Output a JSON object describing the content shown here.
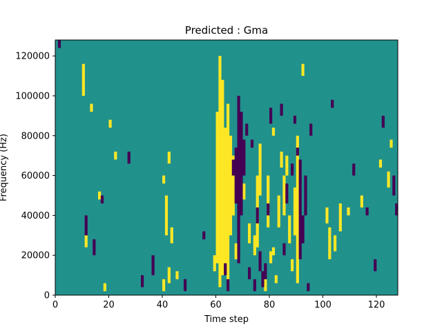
{
  "chart_data": {
    "type": "heatmap",
    "title": "Predicted : Gma",
    "xlabel": "Time step",
    "ylabel": "Frequency (Hz)",
    "xlim": [
      0,
      128
    ],
    "ylim": [
      0,
      128000
    ],
    "x_ticks": [
      0,
      20,
      40,
      60,
      80,
      100,
      120
    ],
    "y_ticks": [
      0,
      20000,
      40000,
      60000,
      80000,
      100000,
      120000
    ],
    "grid": false,
    "legend": "none",
    "grid_size": {
      "cols": 128,
      "rows": 128,
      "row_height_hz": 1000
    },
    "colors": {
      "background": "#21918c",
      "high": "#fde725",
      "low": "#440154"
    },
    "cells": {
      "high": [
        [
          10,
          100,
          116
        ],
        [
          11,
          24,
          30
        ],
        [
          13,
          92,
          96
        ],
        [
          16,
          48,
          52
        ],
        [
          18,
          2,
          6
        ],
        [
          20,
          84,
          88
        ],
        [
          22,
          68,
          72
        ],
        [
          40,
          2,
          8
        ],
        [
          40,
          56,
          60
        ],
        [
          41,
          30,
          50
        ],
        [
          42,
          6,
          14
        ],
        [
          42,
          66,
          72
        ],
        [
          43,
          26,
          34
        ],
        [
          45,
          8,
          12
        ],
        [
          59,
          12,
          20
        ],
        [
          60,
          16,
          92
        ],
        [
          61,
          4,
          120
        ],
        [
          62,
          10,
          108
        ],
        [
          63,
          14,
          84
        ],
        [
          64,
          6,
          96
        ],
        [
          65,
          30,
          80
        ],
        [
          66,
          40,
          70
        ],
        [
          67,
          18,
          26
        ],
        [
          70,
          48,
          56
        ],
        [
          72,
          26,
          36
        ],
        [
          74,
          20,
          30
        ],
        [
          75,
          24,
          60
        ],
        [
          76,
          50,
          76
        ],
        [
          78,
          2,
          8
        ],
        [
          79,
          34,
          60
        ],
        [
          80,
          16,
          22
        ],
        [
          81,
          20,
          24
        ],
        [
          81,
          80,
          84
        ],
        [
          82,
          6,
          10
        ],
        [
          83,
          34,
          50
        ],
        [
          84,
          64,
          72
        ],
        [
          85,
          40,
          60
        ],
        [
          86,
          60,
          70
        ],
        [
          87,
          26,
          40
        ],
        [
          88,
          12,
          18
        ],
        [
          89,
          30,
          54
        ],
        [
          90,
          6,
          80
        ],
        [
          92,
          110,
          116
        ],
        [
          101,
          36,
          44
        ],
        [
          102,
          18,
          34
        ],
        [
          104,
          22,
          30
        ],
        [
          106,
          32,
          46
        ],
        [
          109,
          40,
          44
        ],
        [
          114,
          44,
          50
        ],
        [
          121,
          64,
          68
        ],
        [
          124,
          54,
          62
        ],
        [
          125,
          74,
          78
        ]
      ],
      "low": [
        [
          1,
          124,
          128
        ],
        [
          11,
          30,
          40
        ],
        [
          14,
          20,
          28
        ],
        [
          17,
          46,
          50
        ],
        [
          27,
          66,
          72
        ],
        [
          32,
          4,
          10
        ],
        [
          36,
          10,
          20
        ],
        [
          48,
          2,
          8
        ],
        [
          55,
          28,
          32
        ],
        [
          63,
          10,
          16
        ],
        [
          64,
          2,
          8
        ],
        [
          66,
          60,
          68
        ],
        [
          67,
          46,
          74
        ],
        [
          68,
          16,
          100
        ],
        [
          69,
          40,
          92
        ],
        [
          70,
          60,
          78
        ],
        [
          71,
          80,
          86
        ],
        [
          72,
          8,
          14
        ],
        [
          73,
          74,
          78
        ],
        [
          74,
          2,
          8
        ],
        [
          75,
          36,
          44
        ],
        [
          76,
          12,
          22
        ],
        [
          77,
          4,
          12
        ],
        [
          78,
          8,
          16
        ],
        [
          79,
          40,
          46
        ],
        [
          80,
          86,
          94
        ],
        [
          84,
          90,
          96
        ],
        [
          85,
          20,
          26
        ],
        [
          86,
          46,
          56
        ],
        [
          88,
          60,
          66
        ],
        [
          89,
          86,
          90
        ],
        [
          90,
          70,
          74
        ],
        [
          91,
          18,
          68
        ],
        [
          92,
          26,
          40
        ],
        [
          93,
          40,
          60
        ],
        [
          94,
          2,
          6
        ],
        [
          95,
          80,
          86
        ],
        [
          103,
          94,
          98
        ],
        [
          111,
          60,
          66
        ],
        [
          116,
          40,
          44
        ],
        [
          119,
          12,
          18
        ],
        [
          122,
          84,
          90
        ],
        [
          126,
          50,
          60
        ],
        [
          127,
          40,
          46
        ]
      ]
    }
  }
}
